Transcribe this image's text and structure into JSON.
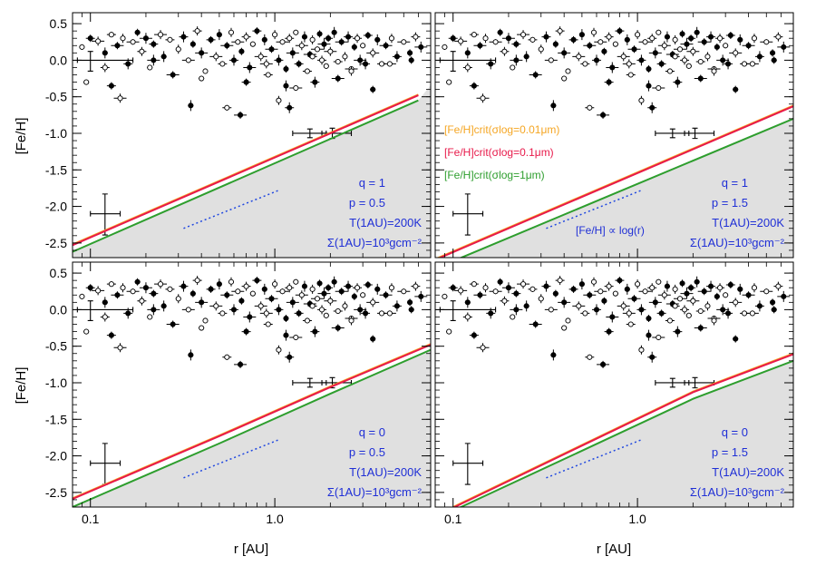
{
  "chart_data": {
    "type": "scatter",
    "xlabel": "r [AU]",
    "ylabel": "[Fe/H]",
    "xscale": "log",
    "xlim": [
      0.08,
      7.0
    ],
    "ylim": [
      -2.7,
      0.65
    ],
    "x_tick_labels": [
      "0.1",
      "1.0"
    ],
    "x_tick_values": [
      0.1,
      1.0
    ],
    "y_tick_labels": [
      "0.5",
      "0.0",
      "-0.5",
      "-1.0",
      "-1.5",
      "-2.0",
      "-2.5"
    ],
    "y_tick_values": [
      0.5,
      0.0,
      -0.5,
      -1.0,
      -1.5,
      -2.0,
      -2.5
    ],
    "colors": {
      "s001": "#f5a623",
      "s01": "#e8194a",
      "s1": "#2e9e2e",
      "trend": "#1f47e0",
      "shade": "#e0e0e0",
      "annotation": "#1f2fd6"
    },
    "legend": [
      {
        "label": "[Fe/H]crit(σlog=0.01μm)",
        "color_key": "s001"
      },
      {
        "label": "[Fe/H]crit(σlog=0.1μm)",
        "color_key": "s01"
      },
      {
        "label": "[Fe/H]crit(σlog=1μm)",
        "color_key": "s1"
      }
    ],
    "trend_label": "[Fe/H] ∝ log(r)",
    "trend": {
      "x": [
        0.32,
        1.05
      ],
      "y": [
        -2.3,
        -1.78
      ]
    },
    "error_crosses": [
      {
        "x": 0.12,
        "y": -2.1,
        "xlo": 0.1,
        "xhi": 0.145,
        "ylo": -2.39,
        "yhi": -1.83
      },
      {
        "x": 1.55,
        "y": -1.0,
        "xlo": 1.25,
        "xhi": 1.9,
        "ylo": -1.06,
        "yhi": -0.94
      },
      {
        "x": 2.05,
        "y": -1.0,
        "xlo": 1.8,
        "xhi": 2.6,
        "ylo": -1.07,
        "yhi": -0.93
      },
      {
        "x": 0.1,
        "y": 0.0,
        "xlo": 0.085,
        "xhi": 0.17,
        "ylo": -0.15,
        "yhi": 0.12
      }
    ],
    "scatter_points": [
      [
        0.09,
        0.18
      ],
      [
        0.1,
        0.3
      ],
      [
        0.11,
        0.26
      ],
      [
        0.12,
        0.1
      ],
      [
        0.13,
        0.35
      ],
      [
        0.14,
        0.2
      ],
      [
        0.15,
        0.3
      ],
      [
        0.16,
        -0.05
      ],
      [
        0.17,
        0.25
      ],
      [
        0.18,
        0.38
      ],
      [
        0.19,
        0.12
      ],
      [
        0.2,
        0.3
      ],
      [
        0.21,
        -0.1
      ],
      [
        0.22,
        0.22
      ],
      [
        0.24,
        0.35
      ],
      [
        0.25,
        0.05
      ],
      [
        0.27,
        0.28
      ],
      [
        0.28,
        -0.2
      ],
      [
        0.3,
        0.15
      ],
      [
        0.32,
        0.32
      ],
      [
        0.34,
        0.0
      ],
      [
        0.36,
        0.22
      ],
      [
        0.38,
        0.4
      ],
      [
        0.4,
        0.1
      ],
      [
        0.42,
        -0.15
      ],
      [
        0.45,
        0.28
      ],
      [
        0.48,
        0.05
      ],
      [
        0.5,
        0.35
      ],
      [
        0.52,
        -0.05
      ],
      [
        0.55,
        0.2
      ],
      [
        0.58,
        0.38
      ],
      [
        0.6,
        0.0
      ],
      [
        0.63,
        0.25
      ],
      [
        0.66,
        0.12
      ],
      [
        0.7,
        0.32
      ],
      [
        0.73,
        -0.1
      ],
      [
        0.76,
        0.22
      ],
      [
        0.8,
        0.4
      ],
      [
        0.84,
        0.05
      ],
      [
        0.88,
        0.28
      ],
      [
        0.92,
        -0.2
      ],
      [
        0.96,
        0.15
      ],
      [
        1.0,
        0.35
      ],
      [
        1.05,
        0.0
      ],
      [
        1.1,
        0.25
      ],
      [
        1.15,
        -0.12
      ],
      [
        1.2,
        0.3
      ],
      [
        1.25,
        0.1
      ],
      [
        1.3,
        0.38
      ],
      [
        1.35,
        -0.05
      ],
      [
        1.4,
        0.2
      ],
      [
        1.45,
        0.32
      ],
      [
        1.5,
        -0.15
      ],
      [
        1.55,
        0.08
      ],
      [
        1.6,
        0.28
      ],
      [
        1.65,
        -0.3
      ],
      [
        1.7,
        0.15
      ],
      [
        1.75,
        0.36
      ],
      [
        1.8,
        0.0
      ],
      [
        1.85,
        0.22
      ],
      [
        1.9,
        -0.08
      ],
      [
        1.95,
        0.3
      ],
      [
        2.0,
        0.12
      ],
      [
        2.1,
        0.38
      ],
      [
        2.2,
        -0.02
      ],
      [
        2.3,
        0.25
      ],
      [
        2.4,
        0.05
      ],
      [
        2.5,
        0.32
      ],
      [
        2.6,
        -0.12
      ],
      [
        2.7,
        0.18
      ],
      [
        2.8,
        0.3
      ],
      [
        2.9,
        0.0
      ],
      [
        3.0,
        0.2
      ],
      [
        3.2,
        0.34
      ],
      [
        3.4,
        0.1
      ],
      [
        3.6,
        0.28
      ],
      [
        3.8,
        -0.05
      ],
      [
        4.0,
        0.2
      ],
      [
        4.3,
        0.3
      ],
      [
        4.6,
        0.05
      ],
      [
        5.0,
        0.25
      ],
      [
        5.4,
        0.1
      ],
      [
        5.8,
        0.32
      ],
      [
        6.2,
        0.18
      ],
      [
        0.095,
        -0.3
      ],
      [
        0.13,
        -0.35
      ],
      [
        0.145,
        -0.52
      ],
      [
        0.35,
        -0.62
      ],
      [
        0.55,
        -0.65
      ],
      [
        0.65,
        -0.75
      ],
      [
        1.05,
        -0.55
      ],
      [
        1.2,
        -0.65
      ],
      [
        1.3,
        -0.38
      ],
      [
        3.4,
        -0.4
      ],
      [
        0.12,
        -0.1
      ],
      [
        0.22,
        0.0
      ],
      [
        0.4,
        -0.25
      ],
      [
        0.7,
        -0.3
      ],
      [
        0.9,
        -0.05
      ],
      [
        1.15,
        -0.35
      ],
      [
        1.6,
        0.05
      ],
      [
        2.2,
        -0.25
      ],
      [
        2.6,
        -0.15
      ],
      [
        3.1,
        -0.05
      ],
      [
        4.2,
        -0.05
      ],
      [
        5.5,
        0.0
      ]
    ],
    "panels": [
      {
        "q_label": "q = 1",
        "p_label": "p = 0.5",
        "t_label": "T(1AU)=200K",
        "sigma_label": "Σ(1AU)=10³gcm⁻²",
        "show_legend": false,
        "show_trend_label": false,
        "show_x_ticklabels": false,
        "show_y_ticklabels": true,
        "series": [
          {
            "name": "[Fe/H]crit(σlog=0.01μm)",
            "color_key": "s001",
            "x": [
              0.08,
              6.0
            ],
            "y": [
              -2.52,
              -0.47
            ]
          },
          {
            "name": "[Fe/H]crit(σlog=0.1μm)",
            "color_key": "s01",
            "x": [
              0.08,
              6.0
            ],
            "y": [
              -2.53,
              -0.48
            ]
          },
          {
            "name": "[Fe/H]crit(σlog=1μm)",
            "color_key": "s1",
            "x": [
              0.08,
              6.0
            ],
            "y": [
              -2.62,
              -0.55
            ]
          }
        ]
      },
      {
        "q_label": "q = 1",
        "p_label": "p = 1.5",
        "t_label": "T(1AU)=200K",
        "sigma_label": "Σ(1AU)=10³gcm⁻²",
        "show_legend": true,
        "show_trend_label": true,
        "show_x_ticklabels": false,
        "show_y_ticklabels": false,
        "series": [
          {
            "name": "[Fe/H]crit(σlog=0.01μm)",
            "color_key": "s001",
            "x": [
              0.08,
              7.0
            ],
            "y": [
              -2.72,
              -0.62
            ]
          },
          {
            "name": "[Fe/H]crit(σlog=0.1μm)",
            "color_key": "s01",
            "x": [
              0.08,
              7.0
            ],
            "y": [
              -2.73,
              -0.63
            ]
          },
          {
            "name": "[Fe/H]crit(σlog=1μm)",
            "color_key": "s1",
            "x": [
              0.08,
              7.0
            ],
            "y": [
              -2.85,
              -0.8
            ]
          }
        ]
      },
      {
        "q_label": "q = 0",
        "p_label": "p = 0.5",
        "t_label": "T(1AU)=200K",
        "sigma_label": "Σ(1AU)=10³gcm⁻²",
        "show_legend": false,
        "show_trend_label": false,
        "show_x_ticklabels": true,
        "show_y_ticklabels": true,
        "series": [
          {
            "name": "[Fe/H]crit(σlog=0.01μm)",
            "color_key": "s001",
            "x": [
              0.08,
              0.5,
              2.0,
              7.0
            ],
            "y": [
              -2.58,
              -1.72,
              -1.05,
              -0.47
            ]
          },
          {
            "name": "[Fe/H]crit(σlog=0.1μm)",
            "color_key": "s01",
            "x": [
              0.08,
              0.5,
              2.0,
              7.0
            ],
            "y": [
              -2.59,
              -1.73,
              -1.06,
              -0.48
            ]
          },
          {
            "name": "[Fe/H]crit(σlog=1μm)",
            "color_key": "s1",
            "x": [
              0.08,
              0.5,
              2.0,
              7.0
            ],
            "y": [
              -2.7,
              -1.83,
              -1.15,
              -0.55
            ]
          }
        ]
      },
      {
        "q_label": "q = 0",
        "p_label": "p = 1.5",
        "t_label": "T(1AU)=200K",
        "sigma_label": "Σ(1AU)=10³gcm⁻²",
        "show_legend": false,
        "show_trend_label": false,
        "show_x_ticklabels": true,
        "show_y_ticklabels": false,
        "series": [
          {
            "name": "[Fe/H]crit(σlog=0.01μm)",
            "color_key": "s001",
            "x": [
              0.1,
              0.5,
              2.0,
              7.0
            ],
            "y": [
              -2.7,
              -1.85,
              -1.12,
              -0.6
            ]
          },
          {
            "name": "[Fe/H]crit(σlog=0.1μm)",
            "color_key": "s01",
            "x": [
              0.1,
              0.5,
              2.0,
              7.0
            ],
            "y": [
              -2.71,
              -1.86,
              -1.13,
              -0.61
            ]
          },
          {
            "name": "[Fe/H]crit(σlog=1μm)",
            "color_key": "s1",
            "x": [
              0.1,
              0.5,
              2.0,
              7.0
            ],
            "y": [
              -2.75,
              -1.93,
              -1.22,
              -0.7
            ]
          }
        ]
      }
    ]
  }
}
